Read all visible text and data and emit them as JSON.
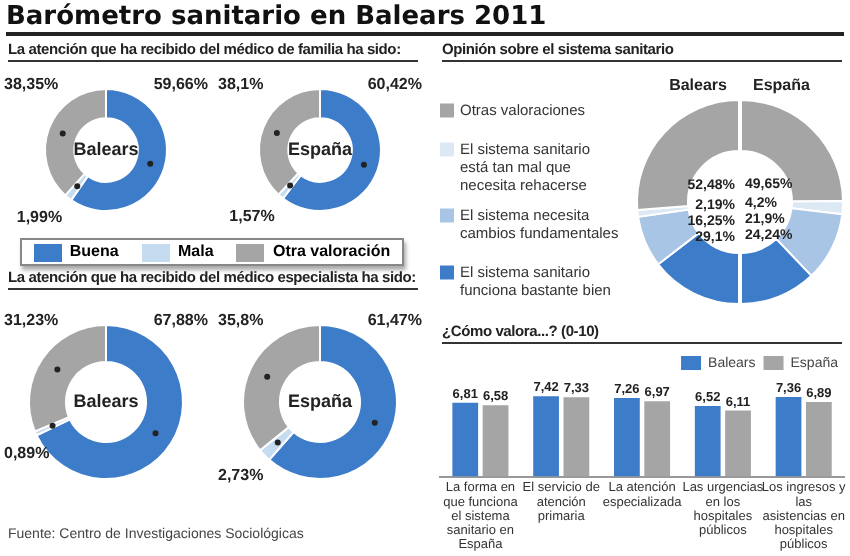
{
  "chart_data": [
    {
      "type": "donut",
      "title": "Barómetro sanitario en Balears 2011",
      "subtitle": "La atención que ha recibido del médico de familia ha sido:",
      "annotations": [
        "Balears"
      ],
      "categories": [
        "Buena",
        "Mala",
        "Otra valoración"
      ],
      "values": [
        59.66,
        1.99,
        38.35
      ],
      "value_labels": [
        "59,66%",
        "1,99%",
        "38,35%"
      ],
      "colors": [
        "#3d7cc9",
        "#c5dcf0",
        "#a5a5a5"
      ],
      "legend": "bottom"
    },
    {
      "type": "donut",
      "annotations": [
        "España"
      ],
      "values": [
        60.42,
        1.57,
        38.1
      ],
      "value_labels": [
        "60,42%",
        "1,57%",
        "38,1%"
      ],
      "colors": [
        "#3d7cc9",
        "#c5dcf0",
        "#a5a5a5"
      ]
    },
    {
      "type": "donut",
      "subtitle": "La atención que ha recibido del médico especialista ha sido:",
      "annotations": [
        "Balears"
      ],
      "values": [
        67.88,
        0.89,
        31.23
      ],
      "value_labels": [
        "67,88%",
        "0,89%",
        "31,23%"
      ],
      "colors": [
        "#3d7cc9",
        "#c5dcf0",
        "#a5a5a5"
      ]
    },
    {
      "type": "donut",
      "annotations": [
        "España",
        "Fuente: Centro de Investigaciones Sociológicas"
      ],
      "values": [
        61.47,
        2.73,
        35.8
      ],
      "value_labels": [
        "61,47%",
        "2,73%",
        "35,8%"
      ],
      "colors": [
        "#3d7cc9",
        "#c5dcf0",
        "#a5a5a5"
      ]
    },
    {
      "type": "donut",
      "title": "Opinión sobre el sistema sanitario",
      "subtitle": "Balears",
      "legend": "left",
      "categories": [
        "Otras valoraciones",
        "El sistema sanitario está tan mal que necesita rehacerse",
        "El sistema necesita cambios fundamentales",
        "El sistema sanitario funciona bastante bien"
      ],
      "colors": [
        "#a5a5a5",
        "#dce8f3",
        "#a8c5e6",
        "#3d7cc9"
      ],
      "values": [
        52.48,
        2.19,
        16.25,
        29.1
      ],
      "value_labels": [
        "52,48%",
        "2,19%",
        "16,25%",
        "29,1%"
      ]
    },
    {
      "type": "donut",
      "subtitle": "España",
      "colors": [
        "#a5a5a5",
        "#dce8f3",
        "#a8c5e6",
        "#3d7cc9"
      ],
      "values": [
        49.65,
        4.2,
        21.9,
        24.24
      ],
      "value_labels": [
        "49,65%",
        "4,2%",
        "21,9%",
        "24,24%"
      ]
    },
    {
      "type": "bar",
      "title": "¿Cómo valora...? (0-10)",
      "categories": [
        "La forma en que funciona el sistema sanitario en España",
        "El servicio de atención primaria",
        "La atención especializada",
        "Las urgencias en los hospitales públicos",
        "Los ingresos y las asistencias en hospitales públicos"
      ],
      "ylim": [
        0,
        8
      ],
      "tick_labels": "x",
      "legend": "top right",
      "series": [
        {
          "name": "Balears",
          "color": "#3d7cc9",
          "values": [
            6.81,
            7.42,
            7.26,
            6.52,
            7.36
          ],
          "value_labels": [
            "6,81",
            "7,42",
            "7,26",
            "6,52",
            "7,36"
          ]
        },
        {
          "name": "España",
          "color": "#a5a5a5",
          "values": [
            6.58,
            7.33,
            6.97,
            6.11,
            6.89
          ],
          "value_labels": [
            "6,58",
            "7,33",
            "6,97",
            "6,11",
            "6,89"
          ]
        }
      ]
    }
  ]
}
